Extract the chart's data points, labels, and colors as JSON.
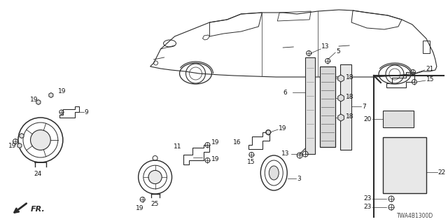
{
  "background_color": "#ffffff",
  "diagram_code": "TWA4B1300D",
  "line_color": "#2a2a2a",
  "label_color": "#111111"
}
